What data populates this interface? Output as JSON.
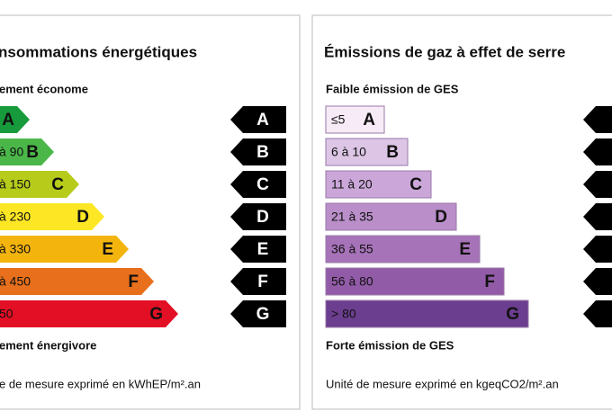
{
  "left": {
    "title": "nsommations énergétiques",
    "top_label": "ement économe",
    "bottom_label": "ement énergivore",
    "unit": "e de mesure exprimé en kWhEP/m².an",
    "rows": [
      {
        "range": null,
        "letter": "A"
      },
      {
        "range": "à 90",
        "letter": "B"
      },
      {
        "range": "à 150",
        "letter": "C"
      },
      {
        "range": "à 230",
        "letter": "D"
      },
      {
        "range": "à 330",
        "letter": "E"
      },
      {
        "range": "à 450",
        "letter": "F"
      },
      {
        "range": "50",
        "letter": "G"
      }
    ],
    "arrows": [
      "A",
      "B",
      "C",
      "D",
      "E",
      "F",
      "G"
    ]
  },
  "right": {
    "title": "Émissions de gaz à effet de serre",
    "top_label": "Faible émission de GES",
    "bottom_label": "Forte émission de GES",
    "unit": "Unité de mesure exprimé en kgeqCO2/m².an",
    "rows": [
      {
        "range": "≤5",
        "letter": "A"
      },
      {
        "range": "6 à 10",
        "letter": "B"
      },
      {
        "range": "11 à 20",
        "letter": "C"
      },
      {
        "range": "21 à 35",
        "letter": "D"
      },
      {
        "range": "36 à 55",
        "letter": "E"
      },
      {
        "range": "56 à 80",
        "letter": "F"
      },
      {
        "range": "> 80",
        "letter": "G"
      }
    ]
  }
}
